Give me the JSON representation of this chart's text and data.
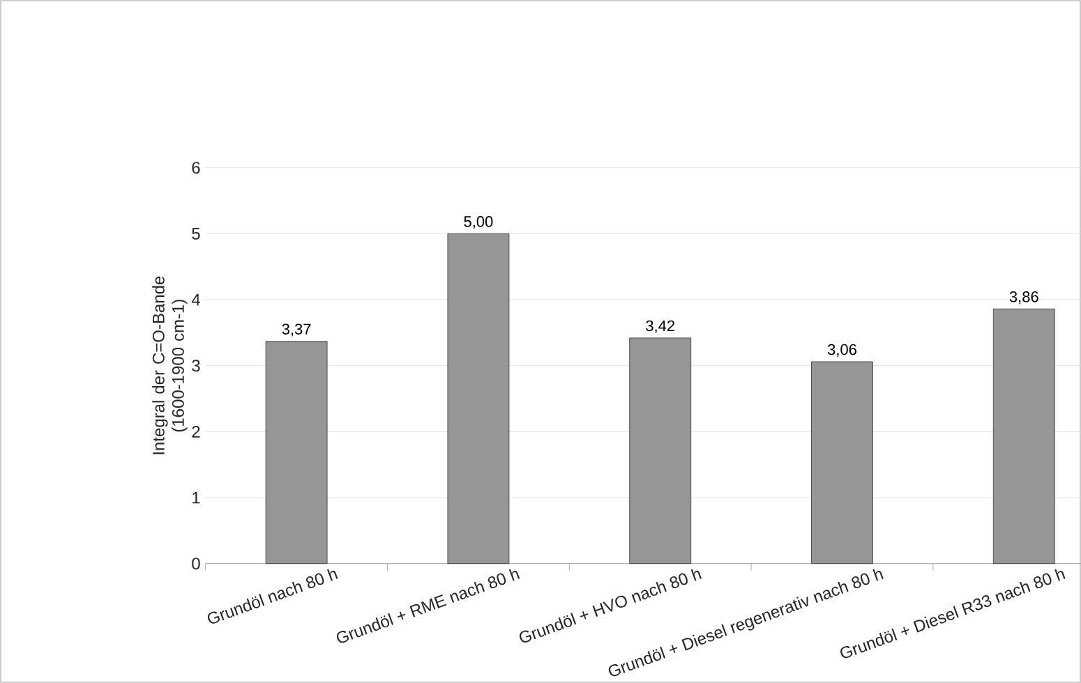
{
  "chart_data": {
    "type": "bar",
    "ylabel": "Integral der C=O-Bande (1600-1900 cm-1)",
    "categories": [
      "Grundöl nach 80 h",
      "Grundöl + RME nach 80 h",
      "Grundöl + HVO nach 80 h",
      "Grundöl + Diesel regenerativ nach 80 h",
      "Grundöl + Diesel R33 nach 80 h"
    ],
    "values": [
      3.37,
      5.0,
      3.42,
      3.06,
      3.86
    ],
    "value_labels": [
      "3,37",
      "5,00",
      "3,42",
      "3,06",
      "3,86"
    ],
    "color": "#969696",
    "ylim": [
      0,
      6
    ],
    "yticks": [
      0,
      1,
      2,
      3,
      4,
      5,
      6
    ],
    "grid": "y"
  }
}
